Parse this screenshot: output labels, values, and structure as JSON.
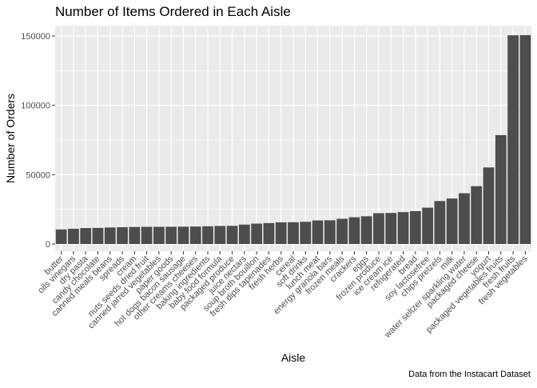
{
  "chart_data": {
    "type": "bar",
    "title": "Number of Items Ordered in Each Aisle",
    "xlabel": "Aisle",
    "ylabel": "Number of Orders",
    "caption": "Data from the Instacart Dataset",
    "ylim": [
      0,
      155000
    ],
    "yticks": [
      0,
      50000,
      100000,
      150000
    ],
    "ytick_labels": [
      "0",
      "50000",
      "100000",
      "150000"
    ],
    "grid": true,
    "bar_color": "#4d4d4d",
    "panel_color": "#ebebeb",
    "grid_color": "#ffffff",
    "categories": [
      "butter",
      "oils vinegars",
      "dry pasta",
      "candy chocolate",
      "canned meals beans",
      "spreads",
      "cream",
      "nuts seeds dried fruit",
      "canned jarred vegetables",
      "paper goods",
      "hot dogs bacon sausage",
      "other creams cheeses",
      "baking ingredients",
      "baby food formula",
      "packaged produce",
      "juice nectars",
      "soup broth bouillon",
      "fresh dips tapenades",
      "fresh herbs",
      "cereal",
      "soft drinks",
      "lunch meat",
      "energy granola bars",
      "frozen meals",
      "crackers",
      "eggs",
      "frozen produce",
      "ice cream ice",
      "refrigerated",
      "bread",
      "soy lactosefree",
      "chips pretzels",
      "milk",
      "water seltzer sparkling water",
      "packaged cheese",
      "yogurt",
      "packaged vegetables fruits",
      "fresh fruits",
      "fresh vegetables"
    ],
    "values": [
      10500,
      11000,
      11500,
      11600,
      11900,
      12100,
      12300,
      12400,
      12400,
      12450,
      12500,
      12600,
      12800,
      13000,
      13100,
      14000,
      14700,
      15100,
      15600,
      15700,
      16000,
      17000,
      17100,
      18200,
      19300,
      20000,
      22200,
      22400,
      23000,
      23700,
      26200,
      31000,
      32800,
      36600,
      41700,
      55200,
      78500,
      150500,
      150600
    ]
  }
}
